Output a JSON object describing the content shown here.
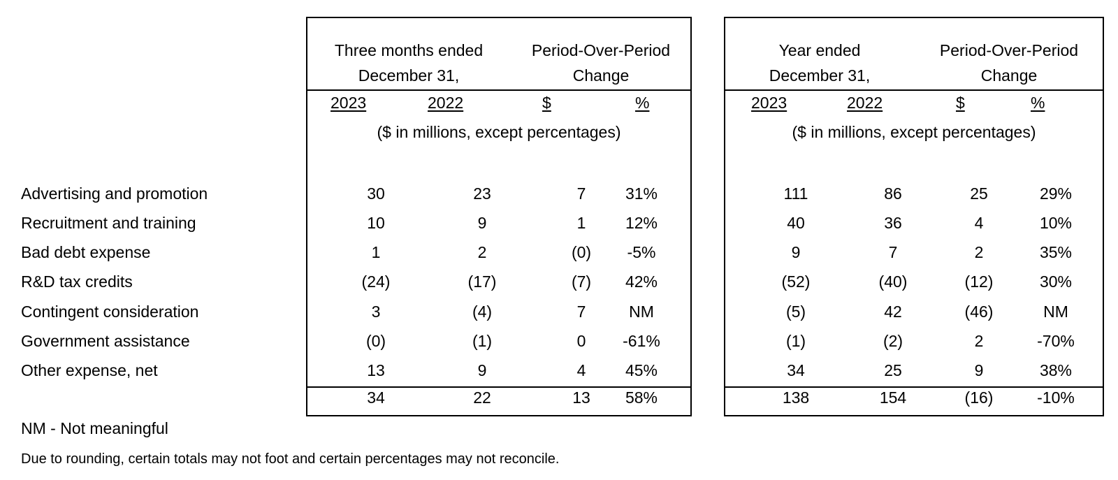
{
  "quarter_block": {
    "period_header": [
      "Three months ended",
      "December 31,"
    ],
    "change_header": [
      "Period-Over-Period",
      "Change"
    ],
    "col_2023": "2023",
    "col_2022": "2022",
    "col_dollar": "$",
    "col_pct": "%",
    "unit_note": "($ in millions, except percentages)"
  },
  "year_block": {
    "period_header": [
      "Year ended",
      "December 31,"
    ],
    "change_header": [
      "Period-Over-Period",
      "Change"
    ],
    "col_2023": "2023",
    "col_2022": "2022",
    "col_dollar": "$",
    "col_pct": "%",
    "unit_note": "($ in millions, except percentages)"
  },
  "rows": [
    {
      "label": "Advertising and promotion",
      "q": [
        "30",
        "23",
        "7",
        "31%"
      ],
      "y": [
        "111",
        "86",
        "25",
        "29%"
      ]
    },
    {
      "label": "Recruitment and training",
      "q": [
        "10",
        "9",
        "1",
        "12%"
      ],
      "y": [
        "40",
        "36",
        "4",
        "10%"
      ]
    },
    {
      "label": "Bad debt expense",
      "q": [
        "1",
        "2",
        "(0)",
        "-5%"
      ],
      "y": [
        "9",
        "7",
        "2",
        "35%"
      ]
    },
    {
      "label": "R&D tax credits",
      "q": [
        "(24)",
        "(17)",
        "(7)",
        "42%"
      ],
      "y": [
        "(52)",
        "(40)",
        "(12)",
        "30%"
      ]
    },
    {
      "label": "Contingent consideration",
      "q": [
        "3",
        "(4)",
        "7",
        "NM"
      ],
      "y": [
        "(5)",
        "42",
        "(46)",
        "NM"
      ]
    },
    {
      "label": "Government assistance",
      "q": [
        "(0)",
        "(1)",
        "0",
        "-61%"
      ],
      "y": [
        "(1)",
        "(2)",
        "2",
        "-70%"
      ]
    },
    {
      "label": "Other expense, net",
      "q": [
        "13",
        "9",
        "4",
        "45%"
      ],
      "y": [
        "34",
        "25",
        "9",
        "38%"
      ]
    }
  ],
  "total": {
    "q": [
      "34",
      "22",
      "13",
      "58%"
    ],
    "y": [
      "138",
      "154",
      "(16)",
      "-10%"
    ]
  },
  "footnotes": {
    "nm": "NM - Not meaningful",
    "rounding": "Due to rounding, certain totals may not foot and certain percentages may not reconcile."
  }
}
